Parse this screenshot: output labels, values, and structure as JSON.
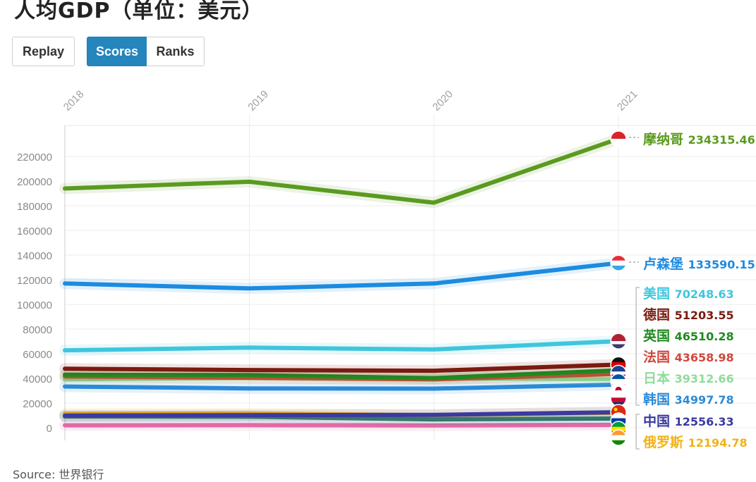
{
  "title": "人均GDP（单位：美元）",
  "buttons": {
    "replay": "Replay",
    "scores": "Scores",
    "ranks": "Ranks"
  },
  "source": "Source: 世界银行",
  "chart_data": {
    "type": "line",
    "title": "人均GDP（单位：美元）",
    "x": [
      "2018",
      "2019",
      "2020",
      "2021"
    ],
    "ylim": [
      0,
      240000
    ],
    "yticks": [
      0,
      20000,
      40000,
      60000,
      80000,
      100000,
      120000,
      140000,
      160000,
      180000,
      200000,
      220000
    ],
    "grid": true,
    "legend": "end-labels-right",
    "series": [
      {
        "name": "摩纳哥",
        "label": "234315.46",
        "color": "#5b9a20",
        "values": [
          194000,
          199500,
          182500,
          234315.46
        ]
      },
      {
        "name": "卢森堡",
        "label": "133590.15",
        "color": "#1c8be0",
        "values": [
          117000,
          113000,
          117000,
          133590.15
        ]
      },
      {
        "name": "美国",
        "label": "70248.63",
        "color": "#3fc6dd",
        "values": [
          62800,
          65000,
          63500,
          70248.63
        ]
      },
      {
        "name": "德国",
        "label": "51203.55",
        "color": "#7a1a10",
        "values": [
          47900,
          46800,
          46200,
          51203.55
        ]
      },
      {
        "name": "英国",
        "label": "46510.28",
        "color": "#1f8a1f",
        "values": [
          43000,
          42700,
          40200,
          46510.28
        ]
      },
      {
        "name": "法国",
        "label": "43658.98",
        "color": "#d0483c",
        "values": [
          41600,
          40500,
          39200,
          43658.98
        ]
      },
      {
        "name": "日本",
        "label": "39312.66",
        "color": "#8fdc9a",
        "values": [
          39200,
          40400,
          40100,
          39312.66
        ]
      },
      {
        "name": "韩国",
        "label": "34997.78",
        "color": "#2b8ad8",
        "values": [
          33400,
          31900,
          31700,
          34997.78
        ]
      },
      {
        "name": "中国",
        "label": "12556.33",
        "color": "#3b3aa0",
        "values": [
          9900,
          10200,
          10400,
          12556.33
        ]
      },
      {
        "name": "俄罗斯",
        "label": "12194.78",
        "color": "#f2b216",
        "values": [
          11300,
          11600,
          10200,
          12194.78
        ]
      },
      {
        "name": "巴西",
        "label": "",
        "color": "#1f7a70",
        "values": [
          9100,
          8900,
          6800,
          7500
        ]
      },
      {
        "name": "印度",
        "label": "",
        "color": "#e06aa8",
        "values": [
          2000,
          2100,
          1900,
          2280
        ]
      }
    ]
  }
}
